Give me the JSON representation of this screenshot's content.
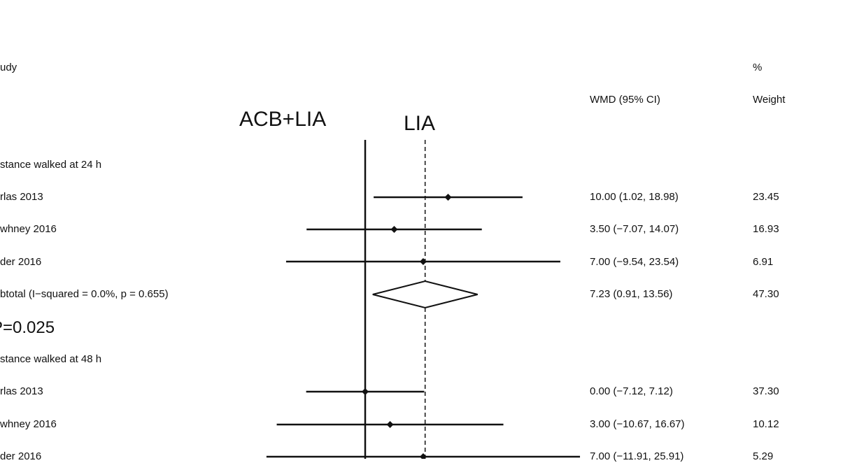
{
  "header": {
    "study_label": "udy",
    "percent_label": "%",
    "wmd_label": "WMD (95% CI)",
    "weight_label": "Weight"
  },
  "plot_labels": {
    "left_favours": "ACB+LIA",
    "right_favours": "LIA"
  },
  "p_value": "P=0.025",
  "chart_data": {
    "type": "forest",
    "null_value": 0,
    "overall_effect": 7.23,
    "groups": [
      {
        "label": "stance walked at 24 h",
        "rows": [
          {
            "study": "rlas 2013",
            "estimate": 10.0,
            "lower": 1.02,
            "upper": 18.98,
            "ci_text": "10.00 (1.02, 18.98)",
            "weight": "23.45"
          },
          {
            "study": "whney 2016",
            "estimate": 3.5,
            "lower": -7.07,
            "upper": 14.07,
            "ci_text": "3.50 (−7.07, 14.07)",
            "weight": "16.93"
          },
          {
            "study": "der 2016",
            "estimate": 7.0,
            "lower": -9.54,
            "upper": 23.54,
            "ci_text": "7.00 (−9.54, 23.54)",
            "weight": "6.91"
          }
        ],
        "subtotal": {
          "label": "btotal  (I−squared = 0.0%, p = 0.655)",
          "estimate": 7.23,
          "lower": 0.91,
          "upper": 13.56,
          "ci_text": "7.23 (0.91, 13.56)",
          "weight": "47.30"
        }
      },
      {
        "label": "stance walked at 48 h",
        "rows": [
          {
            "study": "rlas 2013",
            "estimate": 0.0,
            "lower": -7.12,
            "upper": 7.12,
            "ci_text": "0.00 (−7.12, 7.12)",
            "weight": "37.30"
          },
          {
            "study": "whney 2016",
            "estimate": 3.0,
            "lower": -10.67,
            "upper": 16.67,
            "ci_text": "3.00 (−10.67, 16.67)",
            "weight": "10.12"
          },
          {
            "study": "der 2016",
            "estimate": 7.0,
            "lower": -11.91,
            "upper": 25.91,
            "ci_text": "7.00 (−11.91, 25.91)",
            "weight": "5.29"
          }
        ]
      }
    ]
  }
}
